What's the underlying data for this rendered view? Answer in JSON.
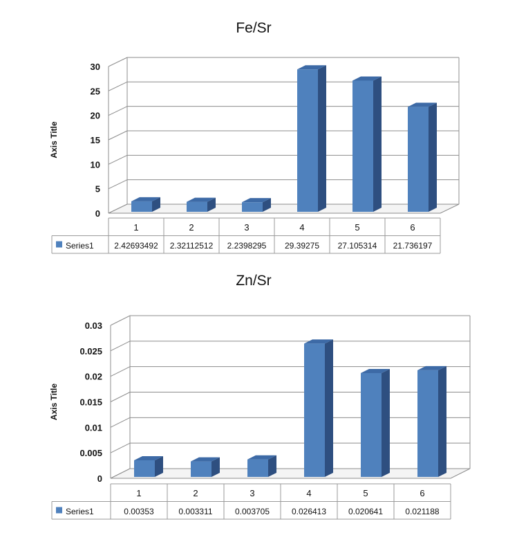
{
  "chart_data": [
    {
      "type": "bar",
      "title": "Fe/Sr",
      "ylabel": "Axis Title",
      "ylim": [
        0,
        30
      ],
      "yticks": [
        "0",
        "5",
        "10",
        "15",
        "20",
        "25",
        "30"
      ],
      "categories": [
        "1",
        "2",
        "3",
        "4",
        "5",
        "6"
      ],
      "series": [
        {
          "name": "Series1",
          "values": [
            2.42693492,
            2.32112512,
            2.2398295,
            29.39275,
            27.105314,
            21.736197
          ],
          "value_labels": [
            "2.42693492",
            "2.32112512",
            "2.2398295",
            "29.39275",
            "27.105314",
            "21.736197"
          ]
        }
      ],
      "grid": true,
      "legend": "data-table",
      "colors": {
        "bar_front": "#4f81bd",
        "bar_side": "#2e4f80",
        "bar_top": "#3d6aa6"
      }
    },
    {
      "type": "bar",
      "title": "Zn/Sr",
      "ylabel": "Axis Title",
      "ylim": [
        0,
        0.03
      ],
      "yticks": [
        "0",
        "0.005",
        "0.01",
        "0.015",
        "0.02",
        "0.025",
        "0.03"
      ],
      "categories": [
        "1",
        "2",
        "3",
        "4",
        "5",
        "6"
      ],
      "series": [
        {
          "name": "Series1",
          "values": [
            0.00353,
            0.003311,
            0.003705,
            0.026413,
            0.020641,
            0.021188
          ],
          "value_labels": [
            "0.00353",
            "0.003311",
            "0.003705",
            "0.026413",
            "0.020641",
            "0.021188"
          ]
        }
      ],
      "grid": true,
      "legend": "data-table",
      "colors": {
        "bar_front": "#4f81bd",
        "bar_side": "#2e4f80",
        "bar_top": "#3d6aa6"
      }
    }
  ]
}
